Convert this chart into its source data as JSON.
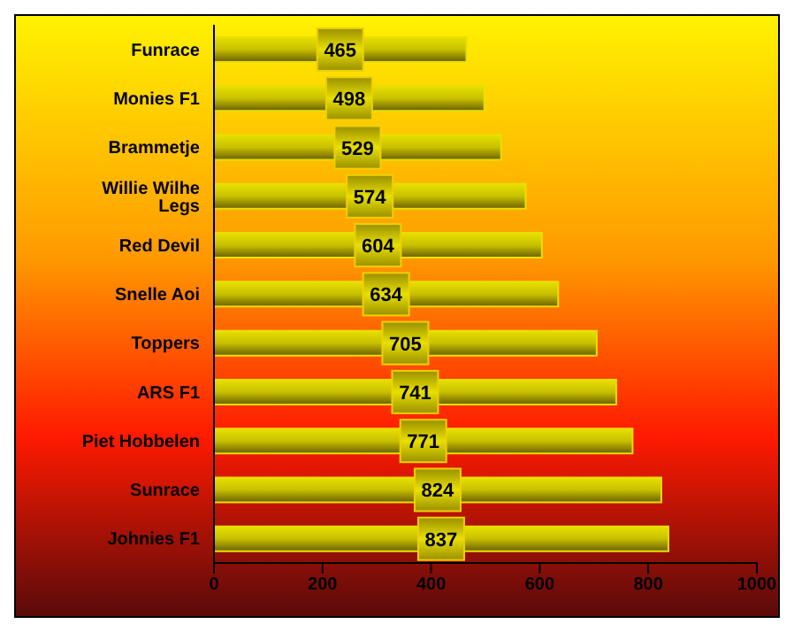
{
  "chart_data": {
    "type": "bar",
    "orientation": "horizontal",
    "categories": [
      "Funrace",
      "Monies F1",
      "Brammetje",
      "Willie Wilhe Legs",
      "Red Devil",
      "Snelle Aoi",
      "Toppers",
      "ARS F1",
      "Piet Hobbelen",
      "Sunrace",
      "Johnies F1"
    ],
    "values": [
      465,
      498,
      529,
      574,
      604,
      634,
      705,
      741,
      771,
      824,
      837
    ],
    "color": "#e8e000",
    "xlim": [
      0,
      1000
    ],
    "xticks": [
      0,
      200,
      400,
      600,
      800,
      1000
    ],
    "data_labels": true
  }
}
